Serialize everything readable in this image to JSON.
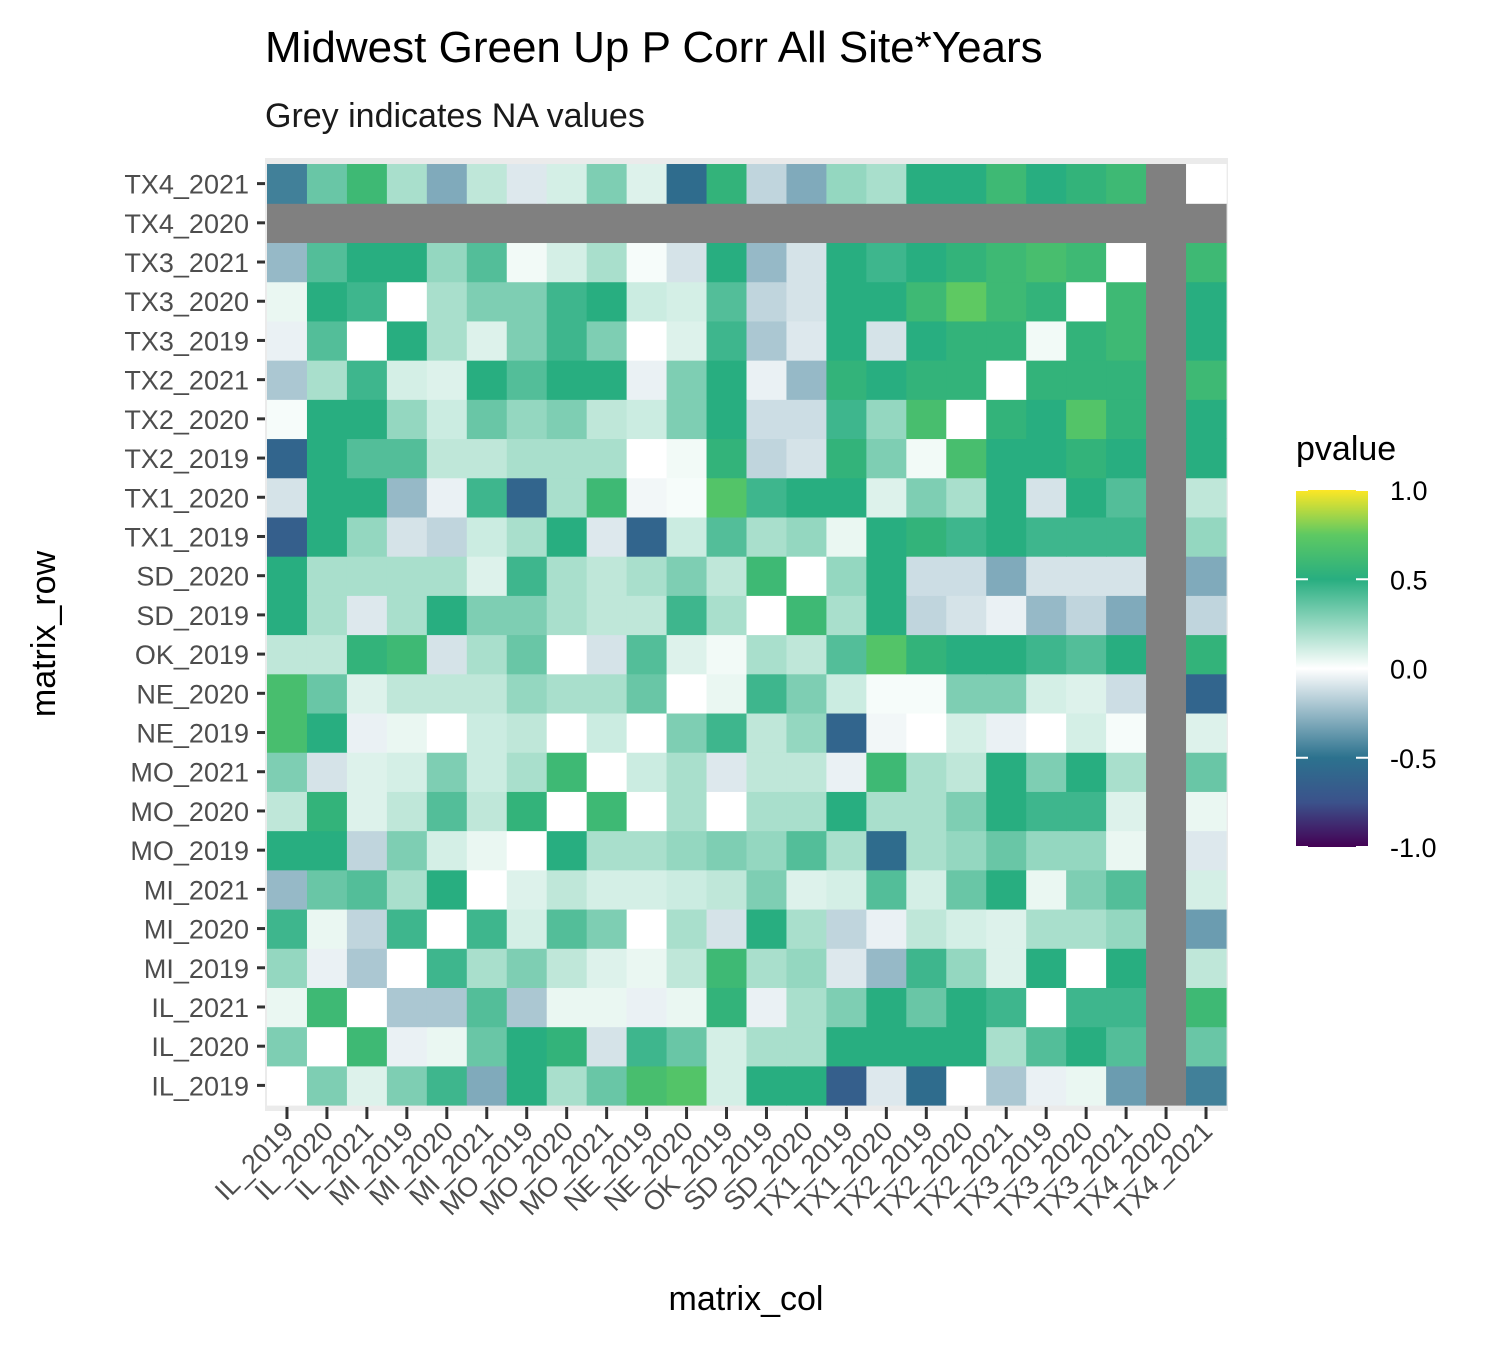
{
  "chart_data": {
    "type": "heatmap",
    "title": "Midwest Green Up P Corr All Site*Years",
    "subtitle": "Grey indicates NA values",
    "xlabel": "matrix_col",
    "ylabel": "matrix_row",
    "legend": {
      "title": "pvalue",
      "placement": "right",
      "range": [
        -1,
        1
      ],
      "ticks": [
        "1.0",
        "0.5",
        "0.0",
        "-0.5",
        "-1.0"
      ],
      "tick_values": [
        1.0,
        0.5,
        0.0,
        -0.5,
        -1.0
      ],
      "na_color": "#808080"
    },
    "x_categories": [
      "IL_2019",
      "IL_2020",
      "IL_2021",
      "MI_2019",
      "MI_2020",
      "MI_2021",
      "MO_2019",
      "MO_2020",
      "MO_2021",
      "NE_2019",
      "NE_2020",
      "OK_2019",
      "SD_2019",
      "SD_2020",
      "TX1_2019",
      "TX1_2020",
      "TX2_2019",
      "TX2_2020",
      "TX2_2021",
      "TX3_2019",
      "TX3_2020",
      "TX3_2021",
      "TX4_2020",
      "TX4_2021"
    ],
    "y_categories": [
      "IL_2019",
      "IL_2020",
      "IL_2021",
      "MI_2019",
      "MI_2020",
      "MI_2021",
      "MO_2019",
      "MO_2020",
      "MO_2021",
      "NE_2019",
      "NE_2020",
      "OK_2019",
      "SD_2019",
      "SD_2020",
      "TX1_2019",
      "TX1_2020",
      "TX2_2019",
      "TX2_2020",
      "TX2_2021",
      "TX3_2019",
      "TX3_2020",
      "TX3_2021",
      "TX4_2020",
      "TX4_2021"
    ],
    "y_order": "bottom-to-top",
    "values": [
      [
        0.0,
        0.3,
        0.08,
        0.3,
        0.45,
        -0.3,
        0.5,
        0.2,
        0.35,
        0.65,
        0.7,
        0.1,
        0.5,
        0.5,
        -0.65,
        -0.08,
        -0.55,
        0.0,
        -0.2,
        -0.05,
        0.05,
        -0.35,
        null,
        -0.45
      ],
      [
        0.3,
        0.0,
        0.6,
        -0.05,
        0.05,
        0.35,
        0.5,
        0.55,
        -0.1,
        0.45,
        0.35,
        0.1,
        0.2,
        0.2,
        0.5,
        0.5,
        0.5,
        0.5,
        0.2,
        0.4,
        0.5,
        0.4,
        null,
        0.35
      ],
      [
        0.05,
        0.6,
        0.0,
        -0.2,
        -0.2,
        0.4,
        -0.2,
        0.05,
        0.05,
        -0.05,
        0.05,
        0.55,
        -0.05,
        0.2,
        0.3,
        0.5,
        0.35,
        0.5,
        0.45,
        0.0,
        0.45,
        0.45,
        null,
        0.6
      ],
      [
        0.25,
        -0.05,
        -0.2,
        0.0,
        0.45,
        0.2,
        0.3,
        0.15,
        0.08,
        0.05,
        0.15,
        0.6,
        0.2,
        0.25,
        -0.08,
        -0.25,
        0.45,
        0.25,
        0.08,
        0.5,
        0.0,
        0.5,
        null,
        0.15
      ],
      [
        0.45,
        0.05,
        -0.15,
        0.45,
        0.0,
        0.45,
        0.1,
        0.4,
        0.3,
        0.0,
        0.2,
        -0.1,
        0.5,
        0.2,
        -0.15,
        -0.05,
        0.15,
        0.1,
        0.08,
        0.2,
        0.2,
        0.25,
        null,
        -0.35
      ],
      [
        -0.25,
        0.35,
        0.4,
        0.2,
        0.5,
        0.0,
        0.08,
        0.15,
        0.1,
        0.1,
        0.12,
        0.15,
        0.3,
        0.08,
        0.1,
        0.4,
        0.1,
        0.35,
        0.5,
        0.05,
        0.3,
        0.4,
        null,
        0.1
      ],
      [
        0.5,
        0.5,
        -0.15,
        0.3,
        0.1,
        0.05,
        0.0,
        0.5,
        0.2,
        0.2,
        0.25,
        0.3,
        0.25,
        0.4,
        0.2,
        -0.55,
        0.2,
        0.25,
        0.35,
        0.25,
        0.25,
        0.05,
        null,
        -0.08
      ],
      [
        0.15,
        0.55,
        0.08,
        0.15,
        0.4,
        0.15,
        0.55,
        0.0,
        0.6,
        0.0,
        0.2,
        0.0,
        0.2,
        0.2,
        0.5,
        0.2,
        0.2,
        0.3,
        0.5,
        0.45,
        0.45,
        0.08,
        null,
        0.05
      ],
      [
        0.3,
        -0.1,
        0.08,
        0.1,
        0.3,
        0.12,
        0.2,
        0.6,
        0.0,
        0.12,
        0.2,
        -0.08,
        0.15,
        0.15,
        -0.05,
        0.6,
        0.2,
        0.15,
        0.5,
        0.3,
        0.5,
        0.2,
        null,
        0.35
      ],
      [
        0.65,
        0.5,
        -0.05,
        0.05,
        0.0,
        0.12,
        0.15,
        0.0,
        0.12,
        0.0,
        0.3,
        0.45,
        0.15,
        0.25,
        -0.6,
        -0.03,
        0.0,
        0.1,
        -0.05,
        0.0,
        0.1,
        0.02,
        null,
        0.08
      ],
      [
        0.65,
        0.35,
        0.08,
        0.15,
        0.15,
        0.15,
        0.25,
        0.2,
        0.2,
        0.35,
        0.0,
        0.05,
        0.45,
        0.3,
        0.12,
        0.02,
        0.02,
        0.3,
        0.3,
        0.1,
        0.08,
        -0.12,
        null,
        -0.6
      ],
      [
        0.15,
        0.15,
        0.55,
        0.6,
        -0.1,
        0.2,
        0.35,
        0.0,
        -0.1,
        0.4,
        0.08,
        0.03,
        0.2,
        0.15,
        0.4,
        0.7,
        0.55,
        0.5,
        0.5,
        0.45,
        0.4,
        0.5,
        null,
        0.55
      ],
      [
        0.5,
        0.2,
        -0.08,
        0.2,
        0.5,
        0.3,
        0.3,
        0.2,
        0.15,
        0.15,
        0.45,
        0.2,
        0.0,
        0.6,
        0.2,
        0.5,
        -0.15,
        -0.1,
        -0.05,
        -0.25,
        -0.15,
        -0.3,
        null,
        -0.15
      ],
      [
        0.5,
        0.2,
        0.2,
        0.2,
        0.2,
        0.08,
        0.45,
        0.2,
        0.15,
        0.2,
        0.3,
        0.15,
        0.6,
        0.0,
        0.25,
        0.5,
        -0.12,
        -0.12,
        -0.3,
        -0.1,
        -0.1,
        -0.1,
        null,
        -0.3
      ],
      [
        -0.65,
        0.5,
        0.25,
        -0.1,
        -0.15,
        0.12,
        0.2,
        0.5,
        -0.08,
        -0.6,
        0.12,
        0.4,
        0.2,
        0.25,
        0.05,
        0.5,
        0.55,
        0.45,
        0.5,
        0.45,
        0.45,
        0.45,
        null,
        0.25
      ],
      [
        -0.1,
        0.5,
        0.5,
        -0.25,
        -0.05,
        0.45,
        -0.6,
        0.2,
        0.6,
        -0.03,
        0.02,
        0.7,
        0.45,
        0.5,
        0.5,
        0.08,
        0.3,
        0.2,
        0.5,
        -0.1,
        0.5,
        0.4,
        null,
        0.15
      ],
      [
        -0.6,
        0.5,
        0.4,
        0.4,
        0.15,
        0.15,
        0.2,
        0.2,
        0.2,
        0.0,
        0.03,
        0.55,
        -0.15,
        -0.1,
        0.55,
        0.3,
        0.03,
        0.65,
        0.5,
        0.5,
        0.55,
        0.5,
        null,
        0.5
      ],
      [
        0.02,
        0.5,
        0.5,
        0.25,
        0.12,
        0.35,
        0.25,
        0.3,
        0.15,
        0.12,
        0.3,
        0.5,
        -0.12,
        -0.12,
        0.45,
        0.25,
        0.65,
        0.0,
        0.55,
        0.5,
        0.7,
        0.55,
        null,
        0.5
      ],
      [
        -0.2,
        0.2,
        0.45,
        0.1,
        0.08,
        0.5,
        0.4,
        0.5,
        0.5,
        -0.05,
        0.3,
        0.5,
        -0.05,
        -0.25,
        0.55,
        0.5,
        0.55,
        0.55,
        0.0,
        0.55,
        0.55,
        0.55,
        null,
        0.6
      ],
      [
        -0.05,
        0.4,
        0.0,
        0.5,
        0.2,
        0.08,
        0.3,
        0.45,
        0.3,
        0.0,
        0.08,
        0.45,
        -0.2,
        -0.08,
        0.5,
        -0.1,
        0.5,
        0.55,
        0.55,
        0.03,
        0.55,
        0.6,
        null,
        0.5
      ],
      [
        0.05,
        0.5,
        0.45,
        0.0,
        0.2,
        0.3,
        0.3,
        0.45,
        0.5,
        0.12,
        0.1,
        0.4,
        -0.15,
        -0.1,
        0.5,
        0.5,
        0.6,
        0.75,
        0.6,
        0.55,
        0.0,
        0.6,
        null,
        0.5
      ],
      [
        -0.25,
        0.4,
        0.5,
        0.5,
        0.25,
        0.4,
        0.03,
        0.1,
        0.2,
        0.02,
        -0.1,
        0.5,
        -0.25,
        -0.1,
        0.5,
        0.45,
        0.5,
        0.55,
        0.6,
        0.65,
        0.6,
        0.0,
        null,
        0.6
      ],
      [
        null,
        null,
        null,
        null,
        null,
        null,
        null,
        null,
        null,
        null,
        null,
        null,
        null,
        null,
        null,
        null,
        null,
        null,
        null,
        null,
        null,
        null,
        null,
        null
      ],
      [
        -0.45,
        0.35,
        0.6,
        0.2,
        -0.3,
        0.15,
        -0.08,
        0.1,
        0.3,
        0.08,
        -0.55,
        0.55,
        -0.15,
        -0.3,
        0.25,
        0.2,
        0.5,
        0.5,
        0.6,
        0.5,
        0.55,
        0.6,
        null,
        0.0
      ]
    ]
  }
}
